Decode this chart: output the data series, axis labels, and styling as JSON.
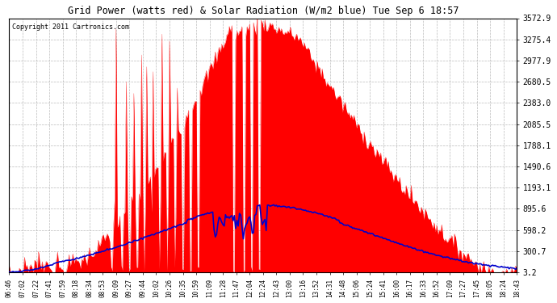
{
  "title": "Grid Power (watts red) & Solar Radiation (W/m2 blue) Tue Sep 6 18:57",
  "copyright": "Copyright 2011 Cartronics.com",
  "yticks": [
    3.2,
    300.7,
    598.2,
    895.6,
    1193.1,
    1490.6,
    1788.1,
    2085.5,
    2383.0,
    2680.5,
    2977.9,
    3275.4,
    3572.9
  ],
  "ymax": 3572.9,
  "ymin": 0,
  "bg_color": "#ffffff",
  "plot_bg": "#ffffff",
  "grid_color": "#aaaaaa",
  "bar_color": "#ff0000",
  "line_color": "#0000cc",
  "xtick_labels": [
    "06:46",
    "07:02",
    "07:22",
    "07:41",
    "07:59",
    "08:18",
    "08:34",
    "08:53",
    "09:09",
    "09:27",
    "09:44",
    "10:02",
    "10:26",
    "10:35",
    "10:59",
    "11:09",
    "11:28",
    "11:47",
    "12:04",
    "12:24",
    "12:43",
    "13:00",
    "13:16",
    "13:52",
    "14:31",
    "14:48",
    "15:06",
    "15:24",
    "15:41",
    "16:00",
    "16:17",
    "16:33",
    "16:52",
    "17:09",
    "17:27",
    "17:45",
    "18:05",
    "18:24",
    "18:43"
  ],
  "n_points": 400,
  "figsize": [
    6.9,
    3.75
  ],
  "dpi": 100
}
